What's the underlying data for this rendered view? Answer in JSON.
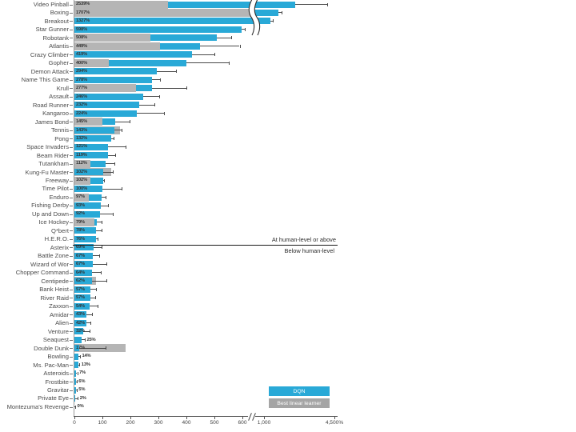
{
  "chart_data": {
    "type": "bar",
    "orientation": "horizontal",
    "title": "",
    "xlabel": "",
    "ylabel": "",
    "unit": "%",
    "x_axis": {
      "ticks": [
        {
          "v": 0,
          "label": "0"
        },
        {
          "v": 100,
          "label": "100"
        },
        {
          "v": 200,
          "label": "200"
        },
        {
          "v": 300,
          "label": "300"
        },
        {
          "v": 400,
          "label": "400"
        },
        {
          "v": 500,
          "label": "500"
        },
        {
          "v": 600,
          "label": "600"
        },
        {
          "v": 1000,
          "label": "1,000"
        },
        {
          "v": 4500,
          "label": "4,500%"
        }
      ],
      "break_between": [
        600,
        1000
      ],
      "max": 4500
    },
    "legend": [
      {
        "name": "DQN",
        "color": "#29a9d7"
      },
      {
        "name": "Best linear learner",
        "color": "#a5a5a5"
      }
    ],
    "divider": {
      "above_label": "At human-level or above",
      "below_label": "Below human-level",
      "after_row": "H.E.R.O."
    },
    "games": [
      {
        "name": "Video Pinball",
        "value_label": "2539%",
        "dqn": 2539,
        "best_linear": 334,
        "err_hi": 4150,
        "label_outside": false
      },
      {
        "name": "Boxing",
        "value_label": "1707%",
        "dqn": 1707,
        "best_linear": 820,
        "err_hi": 1880,
        "label_outside": false
      },
      {
        "name": "Breakout",
        "value_label": "1327%",
        "dqn": 1327,
        "best_linear": 0,
        "err_hi": 1420,
        "label_outside": false
      },
      {
        "name": "Star Gunner",
        "value_label": "598%",
        "dqn": 598,
        "best_linear": 0,
        "err_hi": 640,
        "label_outside": false
      },
      {
        "name": "Robotank",
        "value_label": "508%",
        "dqn": 508,
        "best_linear": 271,
        "err_hi": 560,
        "label_outside": false
      },
      {
        "name": "Atlantis",
        "value_label": "449%",
        "dqn": 449,
        "best_linear": 306,
        "err_hi": 590,
        "label_outside": false
      },
      {
        "name": "Crazy Climber",
        "value_label": "419%",
        "dqn": 419,
        "best_linear": 0,
        "err_hi": 500,
        "label_outside": false
      },
      {
        "name": "Gopher",
        "value_label": "400%",
        "dqn": 400,
        "best_linear": 123,
        "err_hi": 550,
        "label_outside": false
      },
      {
        "name": "Demon Attack",
        "value_label": "294%",
        "dqn": 294,
        "best_linear": 0,
        "err_hi": 363,
        "label_outside": false
      },
      {
        "name": "Name This Game",
        "value_label": "278%",
        "dqn": 278,
        "best_linear": 0,
        "err_hi": 306,
        "label_outside": false
      },
      {
        "name": "Krull",
        "value_label": "277%",
        "dqn": 277,
        "best_linear": 220,
        "err_hi": 400,
        "label_outside": false
      },
      {
        "name": "Assault",
        "value_label": "246%",
        "dqn": 246,
        "best_linear": 0,
        "err_hi": 303,
        "label_outside": false
      },
      {
        "name": "Road Runner",
        "value_label": "232%",
        "dqn": 232,
        "best_linear": 0,
        "err_hi": 286,
        "label_outside": false
      },
      {
        "name": "Kangaroo",
        "value_label": "224%",
        "dqn": 224,
        "best_linear": 0,
        "err_hi": 320,
        "label_outside": false
      },
      {
        "name": "James Bond",
        "value_label": "145%",
        "dqn": 145,
        "best_linear": 100,
        "err_hi": 196,
        "label_outside": false
      },
      {
        "name": "Tennis",
        "value_label": "143%",
        "dqn": 143,
        "best_linear": 163,
        "err_hi": 168,
        "label_outside": false
      },
      {
        "name": "Pong",
        "value_label": "132%",
        "dqn": 132,
        "best_linear": 0,
        "err_hi": 140,
        "label_outside": false
      },
      {
        "name": "Space Invaders",
        "value_label": "121%",
        "dqn": 121,
        "best_linear": 0,
        "err_hi": 183,
        "label_outside": false
      },
      {
        "name": "Beam Rider",
        "value_label": "119%",
        "dqn": 119,
        "best_linear": 0,
        "err_hi": 146,
        "label_outside": false
      },
      {
        "name": "Tutankham",
        "value_label": "112%",
        "dqn": 112,
        "best_linear": 57,
        "err_hi": 143,
        "label_outside": false
      },
      {
        "name": "Kung-Fu Master",
        "value_label": "102%",
        "dqn": 102,
        "best_linear": 131,
        "err_hi": 136,
        "label_outside": false
      },
      {
        "name": "Freeway",
        "value_label": "102%",
        "dqn": 102,
        "best_linear": 57,
        "err_hi": 106,
        "label_outside": false
      },
      {
        "name": "Time Pilot",
        "value_label": "100%",
        "dqn": 100,
        "best_linear": 0,
        "err_hi": 169,
        "label_outside": false
      },
      {
        "name": "Enduro",
        "value_label": "97%",
        "dqn": 97,
        "best_linear": 50,
        "err_hi": 111,
        "label_outside": false
      },
      {
        "name": "Fishing Derby",
        "value_label": "93%",
        "dqn": 93,
        "best_linear": 0,
        "err_hi": 120,
        "label_outside": false
      },
      {
        "name": "Up and Down",
        "value_label": "92%",
        "dqn": 92,
        "best_linear": 0,
        "err_hi": 137,
        "label_outside": false
      },
      {
        "name": "Ice Hockey",
        "value_label": "79%",
        "dqn": 79,
        "best_linear": 70,
        "err_hi": 97,
        "label_outside": false
      },
      {
        "name": "Q*bert",
        "value_label": "78%",
        "dqn": 78,
        "best_linear": 0,
        "err_hi": 97,
        "label_outside": false
      },
      {
        "name": "H.E.R.O.",
        "value_label": "76%",
        "dqn": 76,
        "best_linear": 0,
        "err_hi": 83,
        "label_outside": false
      },
      {
        "name": "Asterix",
        "value_label": "69%",
        "dqn": 69,
        "best_linear": 0,
        "err_hi": 97,
        "label_outside": false
      },
      {
        "name": "Battle Zone",
        "value_label": "67%",
        "dqn": 67,
        "best_linear": 0,
        "err_hi": 89,
        "label_outside": false
      },
      {
        "name": "Wizard of Wor",
        "value_label": "67%",
        "dqn": 67,
        "best_linear": 0,
        "err_hi": 114,
        "label_outside": false
      },
      {
        "name": "Chopper Command",
        "value_label": "64%",
        "dqn": 64,
        "best_linear": 0,
        "err_hi": 94,
        "label_outside": false
      },
      {
        "name": "Centipede",
        "value_label": "62%",
        "dqn": 62,
        "best_linear": 78,
        "err_hi": 114,
        "label_outside": false
      },
      {
        "name": "Bank Heist",
        "value_label": "57%",
        "dqn": 57,
        "best_linear": 0,
        "err_hi": 77,
        "label_outside": false
      },
      {
        "name": "River Raid",
        "value_label": "57%",
        "dqn": 57,
        "best_linear": 0,
        "err_hi": 74,
        "label_outside": false
      },
      {
        "name": "Zaxxon",
        "value_label": "54%",
        "dqn": 54,
        "best_linear": 0,
        "err_hi": 83,
        "label_outside": false
      },
      {
        "name": "Amidar",
        "value_label": "43%",
        "dqn": 43,
        "best_linear": 0,
        "err_hi": 63,
        "label_outside": false
      },
      {
        "name": "Alien",
        "value_label": "42%",
        "dqn": 42,
        "best_linear": 0,
        "err_hi": 57,
        "label_outside": false
      },
      {
        "name": "Venture",
        "value_label": "32%",
        "dqn": 32,
        "best_linear": 0,
        "err_hi": 54,
        "label_outside": false
      },
      {
        "name": "Seaquest",
        "value_label": "25%",
        "dqn": 25,
        "best_linear": 0,
        "err_hi": 37,
        "label_outside": true
      },
      {
        "name": "Double Dunk",
        "value_label": "17%",
        "dqn": 17,
        "best_linear": 183,
        "err_hi": 111,
        "label_outside": false
      },
      {
        "name": "Bowling",
        "value_label": "14%",
        "dqn": 14,
        "best_linear": 0,
        "err_hi": 20,
        "label_outside": true
      },
      {
        "name": "Ms. Pac-Man",
        "value_label": "13%",
        "dqn": 13,
        "best_linear": 0,
        "err_hi": 18,
        "label_outside": true
      },
      {
        "name": "Asteroids",
        "value_label": "7%",
        "dqn": 7,
        "best_linear": 0,
        "err_hi": 10,
        "label_outside": true
      },
      {
        "name": "Frostbite",
        "value_label": "6%",
        "dqn": 6,
        "best_linear": 0,
        "err_hi": 8,
        "label_outside": true
      },
      {
        "name": "Gravitar",
        "value_label": "5%",
        "dqn": 5,
        "best_linear": 0,
        "err_hi": 8,
        "label_outside": true
      },
      {
        "name": "Private Eye",
        "value_label": "2%",
        "dqn": 2,
        "best_linear": 0,
        "err_hi": 12,
        "label_outside": true
      },
      {
        "name": "Montezuma's Revenge",
        "value_label": "0%",
        "dqn": 0,
        "best_linear": 0,
        "err_hi": 3,
        "label_outside": true
      }
    ]
  },
  "colors": {
    "dqn_bar": "#29a9d7",
    "linear_bar": "#b5b5b5",
    "legend_linear": "#a5a5a5",
    "value_text": "#333333",
    "label_text": "#4b4b4b",
    "axis": "#555555"
  }
}
